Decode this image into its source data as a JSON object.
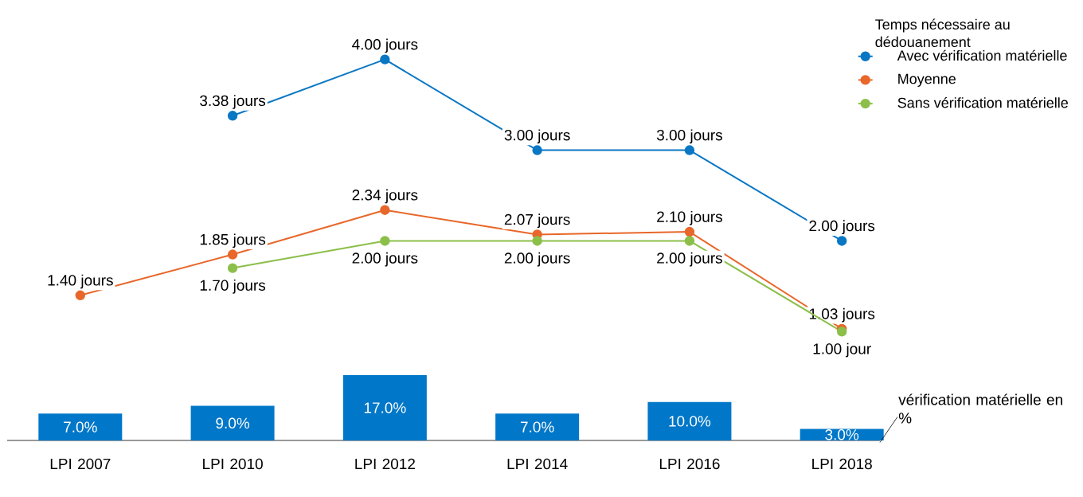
{
  "chart_data": [
    {
      "type": "bar",
      "categories": [
        "LPI 2007",
        "LPI 2010",
        "LPI 2012",
        "LPI 2014",
        "LPI 2016",
        "LPI 2018"
      ],
      "legend": "bottom right",
      "series": [
        {
          "name": "vérification matérielle en %",
          "type": "bar",
          "color": "#0077c8",
          "values": [
            7,
            9,
            17,
            7,
            10,
            3
          ],
          "value_labels": [
            "7.0%",
            "9.0%",
            "17.0%",
            "7.0%",
            "10.0%",
            "3.0%"
          ]
        }
      ]
    },
    {
      "type": "line",
      "categories": [
        null,
        null,
        null,
        null,
        null,
        null
      ],
      "tick_labels": false,
      "legend_title": "Temps nécessaire au dédouanement",
      "legend": "top right",
      "marker": "circle",
      "series": [
        {
          "name": "Avec vérification matérielle",
          "color": "#0a77c4",
          "values": [
            null,
            3.38,
            4.0,
            3.0,
            3.0,
            2.0
          ],
          "value_labels": [
            null,
            "3.38 jours",
            "4.00 jours",
            "3.00 jours",
            "3.00 jours",
            "2.00 jours"
          ]
        },
        {
          "name": "Moyenne",
          "color": "#e8672a",
          "values": [
            1.4,
            1.85,
            2.34,
            2.07,
            2.1,
            1.03
          ],
          "value_labels": [
            "1.40 jours",
            "1.85 jours",
            "2.34 jours",
            "2.07 jours",
            "2.10 jours",
            "1.03 jours"
          ]
        },
        {
          "name": "Sans vérification matérielle",
          "color": "#8cbf4a",
          "values": [
            null,
            1.7,
            2.0,
            2.0,
            2.0,
            1.0
          ],
          "value_labels": [
            null,
            "1.70 jours",
            "2.00 jours",
            "2.00 jours",
            "2.00 jours",
            "1.00 jour"
          ]
        }
      ]
    }
  ]
}
